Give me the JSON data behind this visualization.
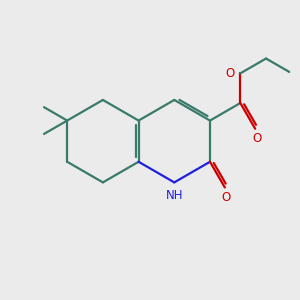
{
  "background_color": "#ebebeb",
  "bond_color": "#3a7a6a",
  "n_color": "#2020dd",
  "o_color": "#cc0000",
  "line_width": 1.6,
  "fig_size": [
    3.0,
    3.0
  ],
  "dpi": 100,
  "xlim": [
    0,
    10
  ],
  "ylim": [
    0,
    10
  ]
}
